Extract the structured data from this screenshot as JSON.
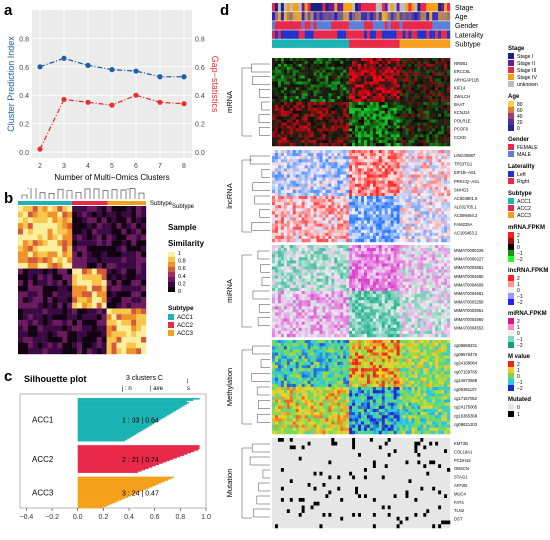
{
  "panels": {
    "a": "a",
    "b": "b",
    "c": "c",
    "d": "d"
  },
  "colors": {
    "cpi": "#1f5fa5",
    "gap": "#e8312f",
    "acc1": "#1bb3b3",
    "acc2": "#e8294a",
    "acc3": "#f5a01a"
  },
  "chart_data": [
    {
      "id": "a",
      "type": "line",
      "xlabel": "Number of Multi−Omics Clusters",
      "ylabel": "Cluster Prediction Index",
      "y2label": "Gap−statistics",
      "x": [
        2,
        3,
        4,
        5,
        6,
        7,
        8
      ],
      "xlim": [
        2,
        8
      ],
      "ylim": [
        0,
        1
      ],
      "yticks": [
        "0.0",
        "0.2",
        "0.4",
        "0.6",
        "0.8"
      ],
      "y2ticks": [
        "0.0",
        "0.2",
        "0.4",
        "0.6",
        "0.8"
      ],
      "grid": true,
      "series": [
        {
          "values": [
            0.6,
            0.66,
            0.61,
            0.58,
            0.57,
            0.53,
            0.53
          ],
          "axis": "left",
          "color": "#1f5fa5"
        },
        {
          "values": [
            0.02,
            0.37,
            0.35,
            0.33,
            0.4,
            0.35,
            0.34
          ],
          "axis": "right",
          "color": "#e8312f"
        }
      ]
    },
    {
      "id": "b",
      "type": "heatmap",
      "title": "Sample",
      "legend_title": "Similarity",
      "legend_ticks": [
        "1",
        "0.8",
        "0.6",
        "0.4",
        "0.2",
        "0"
      ],
      "subtype_title": "Subtype",
      "subtype_legend": [
        "ACC1",
        "ACC2",
        "ACC3"
      ],
      "top_annotation_label": "Subtype"
    },
    {
      "id": "c",
      "type": "bar",
      "title": "Silhouette plot",
      "header": "3  clusters  C",
      "header_sub": "j",
      "colhead": "j :  n",
      "colhead2": "| ave",
      "colhead3": "s",
      "xticks": [
        "−0.4",
        "−0.2",
        "0.0",
        "0.2",
        "0.4",
        "0.6",
        "0.8",
        "1.0"
      ],
      "xlim": [
        -0.45,
        1.0
      ],
      "clusters": [
        {
          "name": "ACC1",
          "label": "1 :  33  |  0.64",
          "n": 33,
          "avg": 0.64,
          "color": "#1bb3b3"
        },
        {
          "name": "ACC2",
          "label": "2 :  21  |  0.74",
          "n": 21,
          "avg": 0.74,
          "color": "#e8294a"
        },
        {
          "name": "ACC3",
          "label": "3 :  24  |  0.47",
          "n": 24,
          "avg": 0.47,
          "color": "#f5a01a"
        }
      ]
    },
    {
      "id": "d",
      "type": "heatmap",
      "annotation_rows": [
        "Stage",
        "Age",
        "Gender",
        "Laterality",
        "Subtype"
      ],
      "blocks": [
        {
          "name": "mRNA",
          "genes": [
            "NR0B1",
            "ERCC6L",
            "ARHGAP11B",
            "KIF14",
            "ZWILCH",
            "BAAT",
            "KCNJ14",
            "POLR1E",
            "PCOF6",
            "CCKD"
          ]
        },
        {
          "name": "lncRNA",
          "genes": [
            "LINC00887",
            "TP53TG1",
            "EIF1B−AS1",
            "PRKCQ−AS1",
            "SNHG3",
            "AC004801.6",
            "AL031705.1",
            "AC099494.2",
            "FAM225A",
            "AC105463.2"
          ]
        },
        {
          "name": "miRNA",
          "genes": [
            "MIMAT0000226",
            "MIMAT0000227",
            "MIMAT0003881",
            "MIMAT0004680",
            "MIMAT0004609",
            "MIMAT0004681",
            "MIMAT0003258",
            "MIMAT0003951",
            "MIMAT0004960",
            "MIMAT0004553"
          ]
        },
        {
          "name": "Methylation",
          "genes": [
            "cg06866231",
            "cg09576475",
            "cg24189064",
            "cg07159765",
            "cg14973588",
            "cg06391107",
            "cg17157052",
            "cg24175005",
            "cg16365368",
            "cg08621203"
          ]
        },
        {
          "name": "Mutation",
          "genes": [
            "KMT2B",
            "COL18A1",
            "PCDH15",
            "OBSCN",
            "STAG1",
            "AFF2B",
            "MUC4",
            "FAT4",
            "TLN2",
            "DST"
          ]
        }
      ],
      "legends": [
        {
          "title": "Stage",
          "items": [
            "Stage I",
            "Stage II",
            "Stage III",
            "Stage IV",
            "unknown"
          ],
          "colors": [
            "#1a237e",
            "#6a1b9a",
            "#e8294a",
            "#f5a01a",
            "#bdbdbd"
          ]
        },
        {
          "title": "Age",
          "ticks": [
            "80",
            "60",
            "40",
            "20",
            "0"
          ]
        },
        {
          "title": "Gender",
          "items": [
            "FEMALE",
            "MALE"
          ],
          "colors": [
            "#e8294a",
            "#5b7fd6"
          ]
        },
        {
          "title": "Laterality",
          "items": [
            "Left",
            "Right"
          ],
          "colors": [
            "#2233cc",
            "#e8294a"
          ]
        },
        {
          "title": "Subtype",
          "items": [
            "ACC1",
            "ACC2",
            "ACC3"
          ],
          "colors": [
            "#1bb3b3",
            "#e8294a",
            "#f5a01a"
          ]
        },
        {
          "title": "mRNA.FPKM",
          "ticks": [
            "2",
            "1",
            "0",
            "−1",
            "−2"
          ]
        },
        {
          "title": "lncRNA.FPKM",
          "ticks": [
            "2",
            "1",
            "0",
            "−1",
            "−2"
          ]
        },
        {
          "title": "miRNA.FPKM",
          "ticks": [
            "2",
            "1",
            "0",
            "−1",
            "−2"
          ]
        },
        {
          "title": "M value",
          "ticks": [
            "2",
            "1",
            "0",
            "−1",
            "−2"
          ]
        },
        {
          "title": "Mutated",
          "items": [
            "0",
            "1"
          ],
          "colors": [
            "#e6e6e6",
            "#000000"
          ]
        }
      ]
    }
  ]
}
